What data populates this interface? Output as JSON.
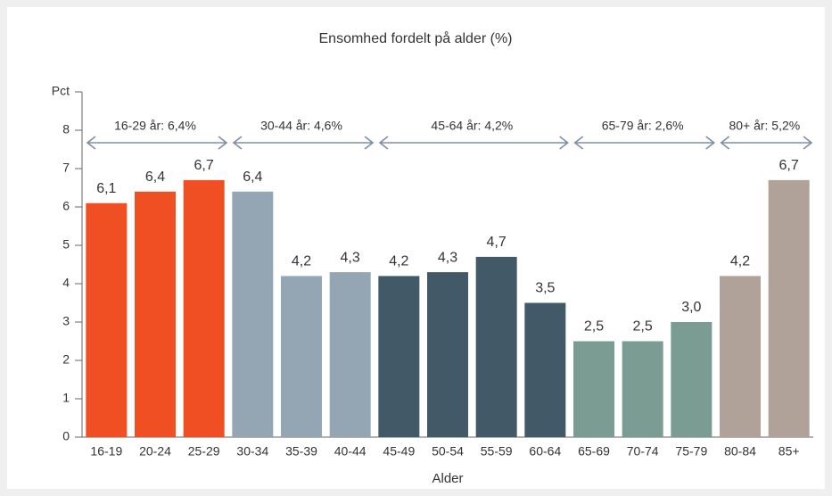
{
  "chart_data": {
    "type": "bar",
    "title": "Ensomhed fordelt på alder (%)",
    "x_label": "Alder",
    "ylim": [
      0,
      9
    ],
    "yticks": [
      0,
      1,
      2,
      3,
      4,
      5,
      6,
      7,
      8,
      {
        "value": 9,
        "label": "Pct"
      }
    ],
    "series": [
      {
        "name": "16-29 år: 6,4%",
        "color": "#f04e23",
        "categories": [
          "16-19",
          "20-24",
          "25-29"
        ],
        "values": [
          6.1,
          6.4,
          6.7
        ],
        "value_labels": [
          "6,1",
          "6,4",
          "6,7"
        ]
      },
      {
        "name": "30-44 år: 4,6%",
        "color": "#94a6b3",
        "categories": [
          "30-34",
          "35-39",
          "40-44"
        ],
        "values": [
          6.4,
          4.2,
          4.3
        ],
        "value_labels": [
          "6,4",
          "4,2",
          "4,3"
        ]
      },
      {
        "name": "45-64 år: 4,2%",
        "color": "#425968",
        "categories": [
          "45-49",
          "50-54",
          "55-59",
          "60-64"
        ],
        "values": [
          4.2,
          4.3,
          4.7,
          3.5
        ],
        "value_labels": [
          "4,2",
          "4,3",
          "4,7",
          "3,5"
        ]
      },
      {
        "name": "65-79 år: 2,6%",
        "color": "#7a9c92",
        "categories": [
          "65-69",
          "70-74",
          "75-79"
        ],
        "values": [
          2.5,
          2.5,
          3.0
        ],
        "value_labels": [
          "2,5",
          "2,5",
          "3,0"
        ]
      },
      {
        "name": "80+ år: 5,2%",
        "color": "#b0a199",
        "categories": [
          "80-84",
          "85+"
        ],
        "values": [
          4.2,
          6.7
        ],
        "value_labels": [
          "4,2",
          "6,7"
        ]
      }
    ]
  }
}
